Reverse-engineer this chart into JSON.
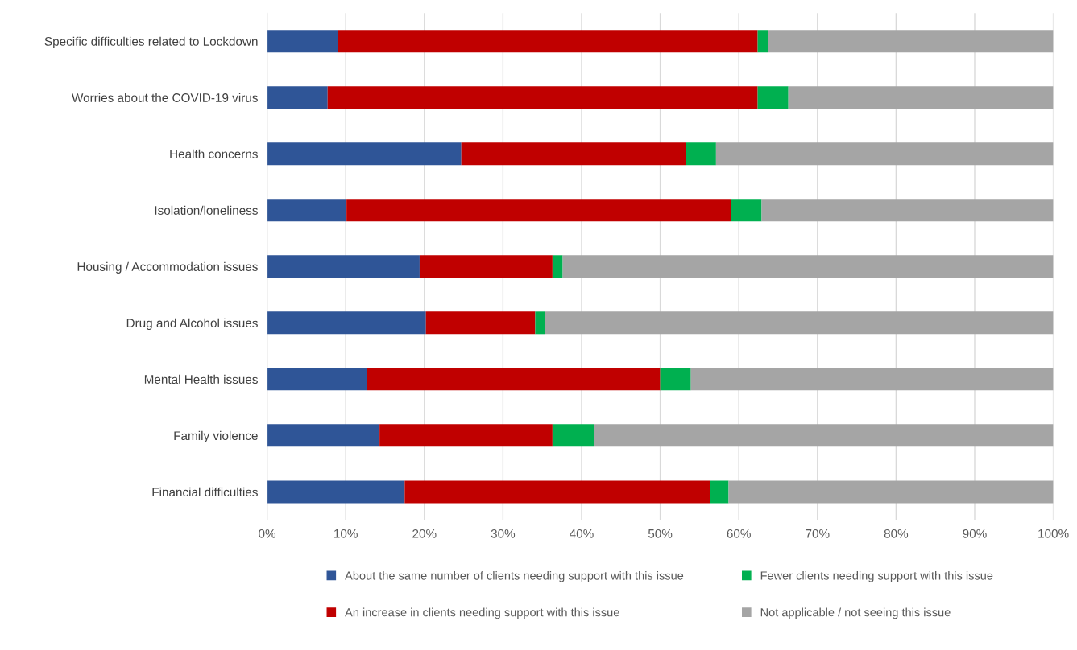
{
  "chart_data": {
    "type": "bar",
    "orientation": "horizontal",
    "stacked": true,
    "categories": [
      "Specific difficulties related to Lockdown",
      "Worries about the COVID-19 virus",
      "Health concerns",
      "Isolation/loneliness",
      "Housing / Accommodation issues",
      "Drug and Alcohol issues",
      "Mental Health issues",
      "Family violence",
      "Financial difficulties"
    ],
    "series": [
      {
        "name": "About the same number of clients needing support with this issue",
        "color": "#2f5597",
        "values": [
          9.0,
          7.7,
          24.7,
          10.1,
          19.4,
          20.2,
          12.7,
          14.3,
          17.5
        ]
      },
      {
        "name": "An increase in clients needing support with this issue",
        "color": "#c00000",
        "values": [
          53.4,
          54.7,
          28.6,
          48.9,
          16.9,
          13.9,
          37.3,
          22.0,
          38.8
        ]
      },
      {
        "name": "Fewer clients needing support with this issue",
        "color": "#00b050",
        "values": [
          1.3,
          3.9,
          3.8,
          3.9,
          1.3,
          1.2,
          3.9,
          5.3,
          2.4
        ]
      },
      {
        "name": "Not applicable / not seeing this issue",
        "color": "#a5a5a5",
        "values": [
          36.3,
          33.7,
          42.9,
          37.1,
          62.4,
          64.7,
          46.1,
          58.4,
          41.3
        ]
      }
    ],
    "xlim": [
      0,
      100
    ],
    "xticks": [
      {
        "value": 0,
        "label": "0%"
      },
      {
        "value": 10,
        "label": "10%"
      },
      {
        "value": 20,
        "label": "20%"
      },
      {
        "value": 30,
        "label": "30%"
      },
      {
        "value": 40,
        "label": "40%"
      },
      {
        "value": 50,
        "label": "50%"
      },
      {
        "value": 60,
        "label": "60%"
      },
      {
        "value": 70,
        "label": "70%"
      },
      {
        "value": 80,
        "label": "80%"
      },
      {
        "value": 90,
        "label": "90%"
      },
      {
        "value": 100,
        "label": "100%"
      }
    ],
    "grid": "x",
    "legend": "bottom"
  }
}
